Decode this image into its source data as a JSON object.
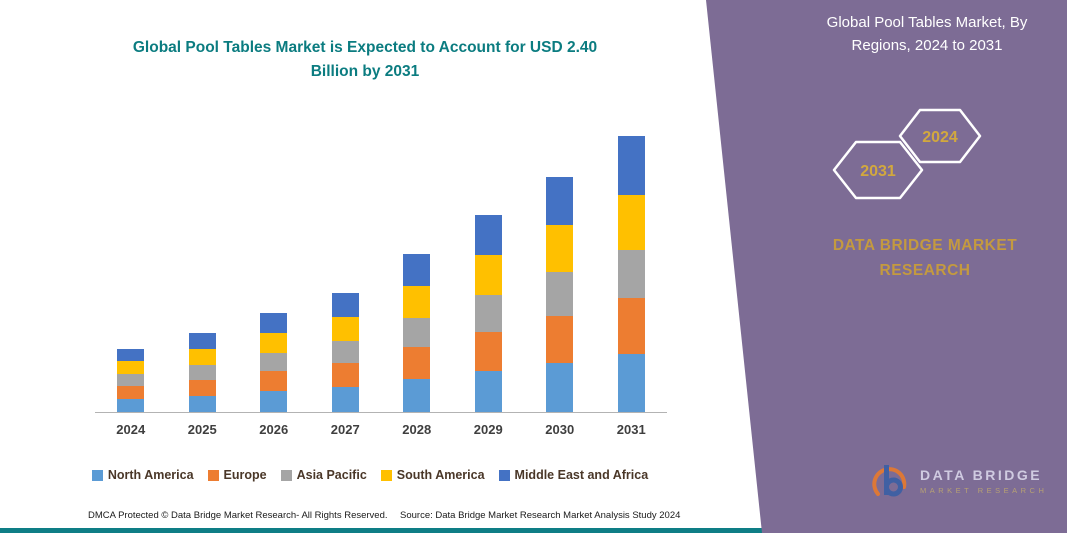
{
  "chart": {
    "title": "Global Pool Tables Market is Expected to Account for USD 2.40 Billion by 2031"
  },
  "chart_data": {
    "type": "bar",
    "stacked": true,
    "title": "Global Pool Tables Market is Expected to Account for USD 2.40 Billion by 2031",
    "unit": "USD Billion",
    "categories": [
      "2024",
      "2025",
      "2026",
      "2027",
      "2028",
      "2029",
      "2030",
      "2031"
    ],
    "series": [
      {
        "name": "North America",
        "color": "#5B9BD5",
        "values": [
          0.11,
          0.14,
          0.18,
          0.22,
          0.29,
          0.36,
          0.43,
          0.5
        ]
      },
      {
        "name": "Europe",
        "color": "#ED7D31",
        "values": [
          0.11,
          0.14,
          0.17,
          0.21,
          0.28,
          0.34,
          0.41,
          0.49
        ]
      },
      {
        "name": "Asia Pacific",
        "color": "#A5A5A5",
        "values": [
          0.1,
          0.13,
          0.16,
          0.19,
          0.25,
          0.32,
          0.38,
          0.42
        ]
      },
      {
        "name": "South America",
        "color": "#FFC000",
        "values": [
          0.11,
          0.14,
          0.17,
          0.21,
          0.28,
          0.35,
          0.41,
          0.48
        ]
      },
      {
        "name": "Middle East and Africa",
        "color": "#4472C4",
        "values": [
          0.1,
          0.14,
          0.17,
          0.21,
          0.28,
          0.35,
          0.42,
          0.51
        ]
      }
    ],
    "totals": [
      0.53,
      0.69,
      0.85,
      1.04,
      1.38,
      1.72,
      2.05,
      2.4
    ],
    "ylim": [
      0,
      2.6
    ],
    "grid": false,
    "legend_position": "bottom"
  },
  "side_panel": {
    "title": "Global Pool Tables Market, By Regions, 2024 to 2031",
    "hexagons": [
      {
        "label": "2031"
      },
      {
        "label": "2024"
      }
    ],
    "brand": "DATA BRIDGE MARKET RESEARCH",
    "colors": {
      "background": "#7d6c95",
      "accent_gold": "#C49A3F",
      "teal": "#0E7E86"
    }
  },
  "logo": {
    "line1": "DATA BRIDGE",
    "line2": "MARKET RESEARCH"
  },
  "footer": {
    "dmca": "DMCA Protected © Data Bridge Market Research-  All Rights Reserved.",
    "source": "Source: Data Bridge Market Research  Market Analysis Study 2024"
  }
}
